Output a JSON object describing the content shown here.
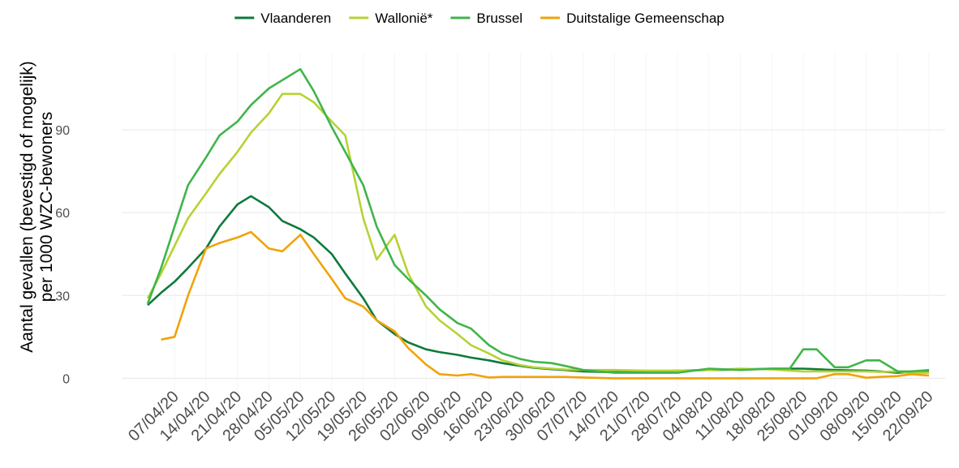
{
  "chart_data": {
    "type": "line",
    "y_label": [
      "Aantal gevallen (bevestigd of mogelijk)",
      "per 1000 WZC-bewoners"
    ],
    "x": [
      "01/04/20",
      "04/04/20",
      "07/04/20",
      "10/04/20",
      "14/04/20",
      "17/04/20",
      "21/04/20",
      "24/04/20",
      "28/04/20",
      "01/05/20",
      "05/05/20",
      "08/05/20",
      "12/05/20",
      "15/05/20",
      "19/05/20",
      "22/05/20",
      "26/05/20",
      "29/05/20",
      "02/06/20",
      "05/06/20",
      "09/06/20",
      "12/06/20",
      "16/06/20",
      "19/06/20",
      "23/06/20",
      "26/06/20",
      "30/06/20",
      "03/07/20",
      "07/07/20",
      "14/07/20",
      "21/07/20",
      "28/07/20",
      "04/08/20",
      "11/08/20",
      "18/08/20",
      "22/08/20",
      "25/08/20",
      "28/08/20",
      "01/09/20",
      "04/09/20",
      "08/09/20",
      "11/09/20",
      "15/09/20",
      "18/09/20",
      "22/09/20"
    ],
    "series": [
      {
        "name": "Vlaanderen",
        "color": "#0e7a3c",
        "values": [
          26.5,
          31,
          35,
          40,
          47,
          55,
          63,
          66,
          62,
          57,
          54,
          51,
          45,
          38,
          29,
          21,
          16,
          13,
          10.5,
          9.5,
          8.5,
          7.5,
          6.5,
          5.5,
          4.5,
          3.8,
          3.3,
          3,
          2.5,
          2.2,
          2.3,
          2.8,
          3,
          3.2,
          3.5,
          3.5,
          3.5,
          3.3,
          3,
          2.9,
          2.8,
          2.5,
          2,
          2.3,
          2.8
        ]
      },
      {
        "name": "Wallonië*",
        "color": "#b5d334",
        "values": [
          29,
          38,
          48,
          58,
          67,
          74,
          82,
          89,
          96,
          103,
          103,
          100,
          93,
          88,
          58,
          43,
          52,
          38,
          26,
          21,
          16,
          12,
          9,
          6.5,
          4.8,
          4,
          3.5,
          3.2,
          3,
          3,
          2.8,
          2.8,
          3,
          3.5,
          3.2,
          2.8,
          2.5,
          2.5,
          2.5,
          2.5,
          2.5,
          2.3,
          2.5,
          2,
          2
        ]
      },
      {
        "name": "Brussel",
        "color": "#3fb54a",
        "values": [
          27,
          40,
          55,
          70,
          80,
          88,
          93,
          99,
          105,
          108,
          112,
          104,
          91,
          82,
          70,
          55,
          41,
          36,
          30,
          25,
          20,
          18,
          12,
          9,
          7,
          6,
          5.5,
          4.5,
          3,
          2,
          2,
          2,
          3.5,
          3,
          3.5,
          3.5,
          10.5,
          10.5,
          4,
          4,
          6.5,
          6.5,
          2.5,
          2.5,
          3
        ]
      },
      {
        "name": "Duitstalige Gemeenschap",
        "color": "#f0a30a",
        "values": [
          null,
          14,
          15,
          30,
          47,
          49,
          51,
          53,
          47,
          46,
          52,
          45,
          36,
          29,
          26,
          21,
          17,
          11,
          5,
          1.5,
          1,
          1.5,
          0.3,
          0.5,
          0.5,
          0.5,
          0.5,
          0.5,
          0.3,
          0,
          0,
          0,
          0,
          0,
          0,
          0,
          0,
          0,
          1.5,
          1.5,
          0.2,
          0.5,
          0.8,
          1.5,
          1
        ]
      }
    ],
    "xlim": [
      "01/04/20",
      "22/09/20"
    ],
    "xticks": [
      "07/04/20",
      "14/04/20",
      "21/04/20",
      "28/04/20",
      "05/05/20",
      "12/05/20",
      "19/05/20",
      "26/05/20",
      "02/06/20",
      "09/06/20",
      "16/06/20",
      "23/06/20",
      "30/06/20",
      "07/07/20",
      "14/07/20",
      "21/07/20",
      "28/07/20",
      "04/08/20",
      "11/08/20",
      "18/08/20",
      "25/08/20",
      "01/09/20",
      "08/09/20",
      "15/09/20",
      "22/09/20"
    ],
    "ylim": [
      -4,
      115
    ],
    "yticks": [
      0,
      30,
      60,
      90
    ],
    "grid": true,
    "legend": "top"
  }
}
